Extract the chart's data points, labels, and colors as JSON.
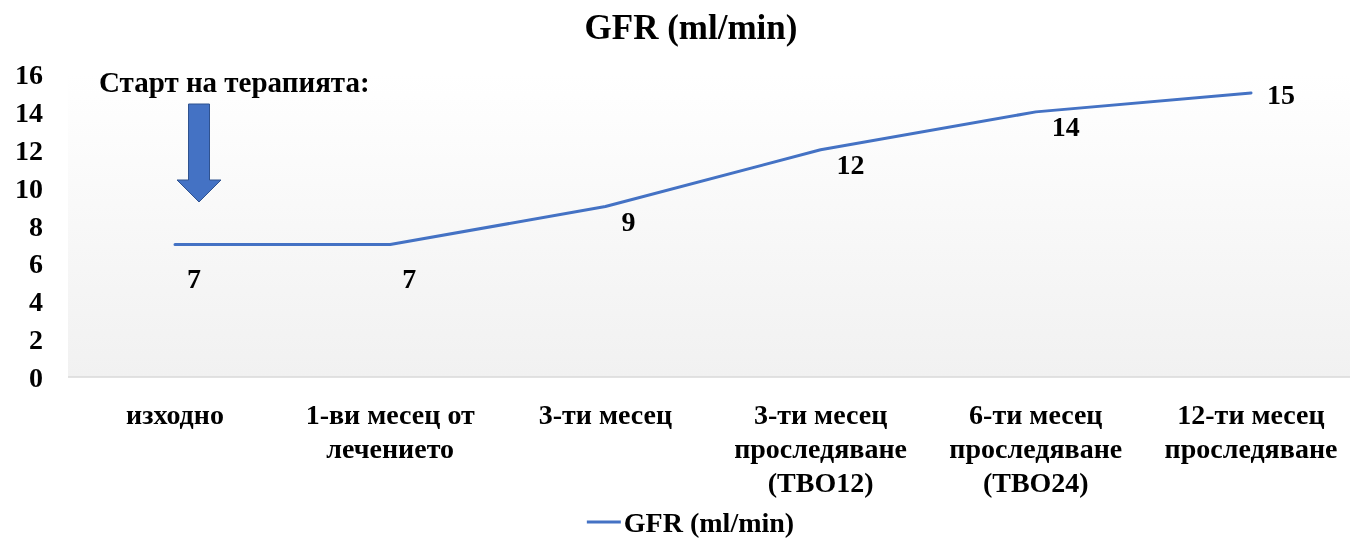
{
  "chart_data": {
    "type": "line",
    "title": "GFR (ml/min)",
    "categories": [
      "изходно",
      "1-ви месец от лечението",
      "3-ти месец",
      "3-ти месец проследяване (TBO12)",
      "6-ти месец проследяване (TBO24)",
      "12-ти месец проследяване"
    ],
    "series": [
      {
        "name": "GFR (ml/min)",
        "color": "#4472c4",
        "values": [
          7,
          7,
          9,
          12,
          14,
          15
        ]
      }
    ],
    "ylim": [
      0,
      16
    ],
    "yticks": [
      0,
      2,
      4,
      6,
      8,
      10,
      12,
      14,
      16
    ],
    "data_labels": true,
    "legend": "bottom",
    "annotations": [
      "Старт на терапията:"
    ]
  }
}
